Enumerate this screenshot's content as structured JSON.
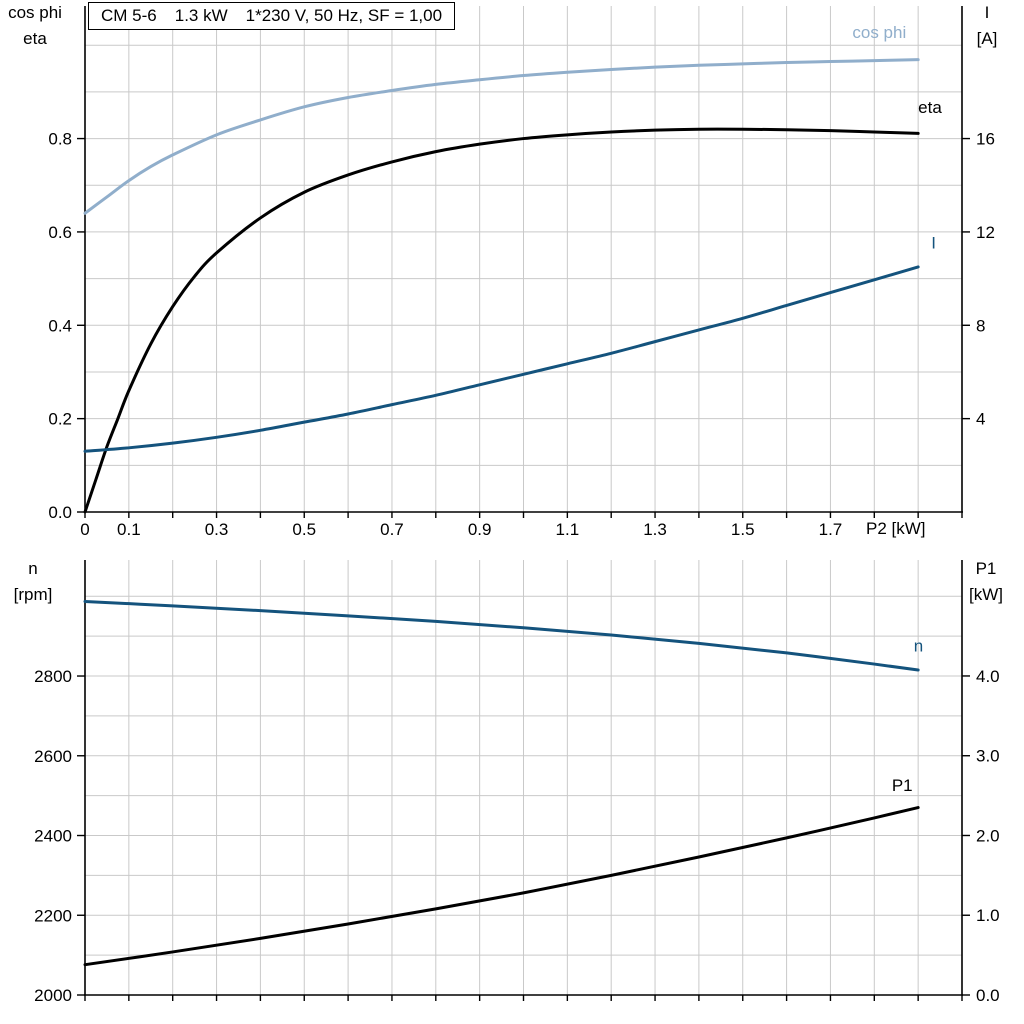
{
  "header": {
    "segments": [
      "CM 5-6",
      "1.3 kW",
      "1*230 V, 50 Hz, SF = 1,00"
    ]
  },
  "colors": {
    "black": "#000000",
    "light_blue": "#90AECB",
    "dark_blue": "#14537D",
    "grid": "#c9c9c9",
    "axis": "#000000"
  },
  "chart_data": [
    {
      "type": "line",
      "name": "motor-electrical-curves",
      "x": {
        "label": "P2 [kW]",
        "min": 0,
        "max": 2.0,
        "grid_step": 0.1,
        "ticks": [
          [
            0,
            "0"
          ],
          [
            0.1,
            "0.1"
          ],
          [
            0.3,
            "0.3"
          ],
          [
            0.5,
            "0.5"
          ],
          [
            0.7,
            "0.7"
          ],
          [
            0.9,
            "0.9"
          ],
          [
            1.1,
            "1.1"
          ],
          [
            1.3,
            "1.3"
          ],
          [
            1.5,
            "1.5"
          ],
          [
            1.7,
            "1.7"
          ]
        ]
      },
      "y_left": {
        "title": [
          "cos phi",
          "eta"
        ],
        "min": 0,
        "max": 1.084,
        "grid_step": 0.1,
        "grid_max": 1.0,
        "ticks": [
          [
            0,
            "0.0"
          ],
          [
            0.2,
            "0.2"
          ],
          [
            0.4,
            "0.4"
          ],
          [
            0.6,
            "0.6"
          ],
          [
            0.8,
            "0.8"
          ]
        ]
      },
      "y_right": {
        "title": [
          "I",
          "[A]"
        ],
        "min": 0,
        "max": 21.68,
        "ticks": [
          [
            4,
            "4"
          ],
          [
            8,
            "8"
          ],
          [
            12,
            "12"
          ],
          [
            16,
            "16"
          ]
        ]
      },
      "series": [
        {
          "name": "cos phi",
          "axis": "left",
          "color": "light_blue",
          "label_x": 1.75,
          "label_y": 1.015,
          "points": [
            [
              0,
              0.64
            ],
            [
              0.05,
              0.675
            ],
            [
              0.1,
              0.71
            ],
            [
              0.15,
              0.74
            ],
            [
              0.2,
              0.765
            ],
            [
              0.3,
              0.808
            ],
            [
              0.4,
              0.84
            ],
            [
              0.5,
              0.868
            ],
            [
              0.6,
              0.888
            ],
            [
              0.7,
              0.903
            ],
            [
              0.8,
              0.916
            ],
            [
              0.9,
              0.926
            ],
            [
              1.0,
              0.935
            ],
            [
              1.1,
              0.942
            ],
            [
              1.2,
              0.948
            ],
            [
              1.3,
              0.953
            ],
            [
              1.4,
              0.957
            ],
            [
              1.5,
              0.96
            ],
            [
              1.6,
              0.963
            ],
            [
              1.7,
              0.965
            ],
            [
              1.8,
              0.967
            ],
            [
              1.9,
              0.969
            ]
          ]
        },
        {
          "name": "eta",
          "axis": "left",
          "color": "black",
          "label_x": 1.9,
          "label_y": 0.855,
          "points": [
            [
              0,
              0.0
            ],
            [
              0.025,
              0.07
            ],
            [
              0.05,
              0.14
            ],
            [
              0.075,
              0.2
            ],
            [
              0.1,
              0.26
            ],
            [
              0.15,
              0.36
            ],
            [
              0.2,
              0.44
            ],
            [
              0.25,
              0.505
            ],
            [
              0.3,
              0.555
            ],
            [
              0.4,
              0.63
            ],
            [
              0.5,
              0.685
            ],
            [
              0.6,
              0.722
            ],
            [
              0.7,
              0.75
            ],
            [
              0.8,
              0.772
            ],
            [
              0.9,
              0.788
            ],
            [
              1.0,
              0.8
            ],
            [
              1.1,
              0.808
            ],
            [
              1.2,
              0.814
            ],
            [
              1.3,
              0.818
            ],
            [
              1.4,
              0.82
            ],
            [
              1.5,
              0.82
            ],
            [
              1.6,
              0.819
            ],
            [
              1.7,
              0.817
            ],
            [
              1.8,
              0.814
            ],
            [
              1.9,
              0.811
            ]
          ]
        },
        {
          "name": "I",
          "axis": "right",
          "color": "dark_blue",
          "label_x": 1.93,
          "label_y": 11.3,
          "points": [
            [
              0,
              2.6
            ],
            [
              0.1,
              2.75
            ],
            [
              0.2,
              2.95
            ],
            [
              0.3,
              3.2
            ],
            [
              0.4,
              3.5
            ],
            [
              0.5,
              3.85
            ],
            [
              0.6,
              4.2
            ],
            [
              0.7,
              4.6
            ],
            [
              0.8,
              5.0
            ],
            [
              0.9,
              5.45
            ],
            [
              1.0,
              5.9
            ],
            [
              1.1,
              6.35
            ],
            [
              1.2,
              6.8
            ],
            [
              1.3,
              7.3
            ],
            [
              1.4,
              7.8
            ],
            [
              1.5,
              8.3
            ],
            [
              1.6,
              8.85
            ],
            [
              1.7,
              9.4
            ],
            [
              1.8,
              9.95
            ],
            [
              1.9,
              10.5
            ]
          ]
        }
      ]
    },
    {
      "type": "line",
      "name": "motor-speed-power-curves",
      "x": {
        "label": "",
        "min": 0,
        "max": 2.0,
        "grid_step": 0.1,
        "ticks": []
      },
      "y_left": {
        "title": [
          "n",
          "[rpm]"
        ],
        "min": 2000,
        "max": 3091,
        "grid_step": 100,
        "grid_max": 3000,
        "ticks": [
          [
            2000,
            "2000"
          ],
          [
            2200,
            "2200"
          ],
          [
            2400,
            "2400"
          ],
          [
            2600,
            "2600"
          ],
          [
            2800,
            "2800"
          ]
        ]
      },
      "y_right": {
        "title": [
          "P1",
          "[kW]"
        ],
        "min": 0,
        "max": 5.454,
        "ticks": [
          [
            0,
            "0.0"
          ],
          [
            1,
            "1.0"
          ],
          [
            2,
            "2.0"
          ],
          [
            3,
            "3.0"
          ],
          [
            4,
            "4.0"
          ]
        ]
      },
      "series": [
        {
          "name": "n",
          "axis": "left",
          "color": "dark_blue",
          "label_x": 1.89,
          "label_y": 2862,
          "points": [
            [
              0,
              2987
            ],
            [
              0.2,
              2976
            ],
            [
              0.4,
              2964
            ],
            [
              0.6,
              2951
            ],
            [
              0.8,
              2937
            ],
            [
              1.0,
              2921
            ],
            [
              1.2,
              2903
            ],
            [
              1.4,
              2882
            ],
            [
              1.6,
              2858
            ],
            [
              1.8,
              2830
            ],
            [
              1.9,
              2815
            ]
          ]
        },
        {
          "name": "P1",
          "axis": "right",
          "color": "black",
          "label_x": 1.84,
          "label_y": 2.56,
          "points": [
            [
              0,
              0.38
            ],
            [
              0.2,
              0.54
            ],
            [
              0.4,
              0.71
            ],
            [
              0.6,
              0.89
            ],
            [
              0.8,
              1.08
            ],
            [
              1.0,
              1.28
            ],
            [
              1.2,
              1.5
            ],
            [
              1.4,
              1.73
            ],
            [
              1.6,
              1.97
            ],
            [
              1.8,
              2.22
            ],
            [
              1.9,
              2.35
            ]
          ]
        }
      ]
    }
  ]
}
